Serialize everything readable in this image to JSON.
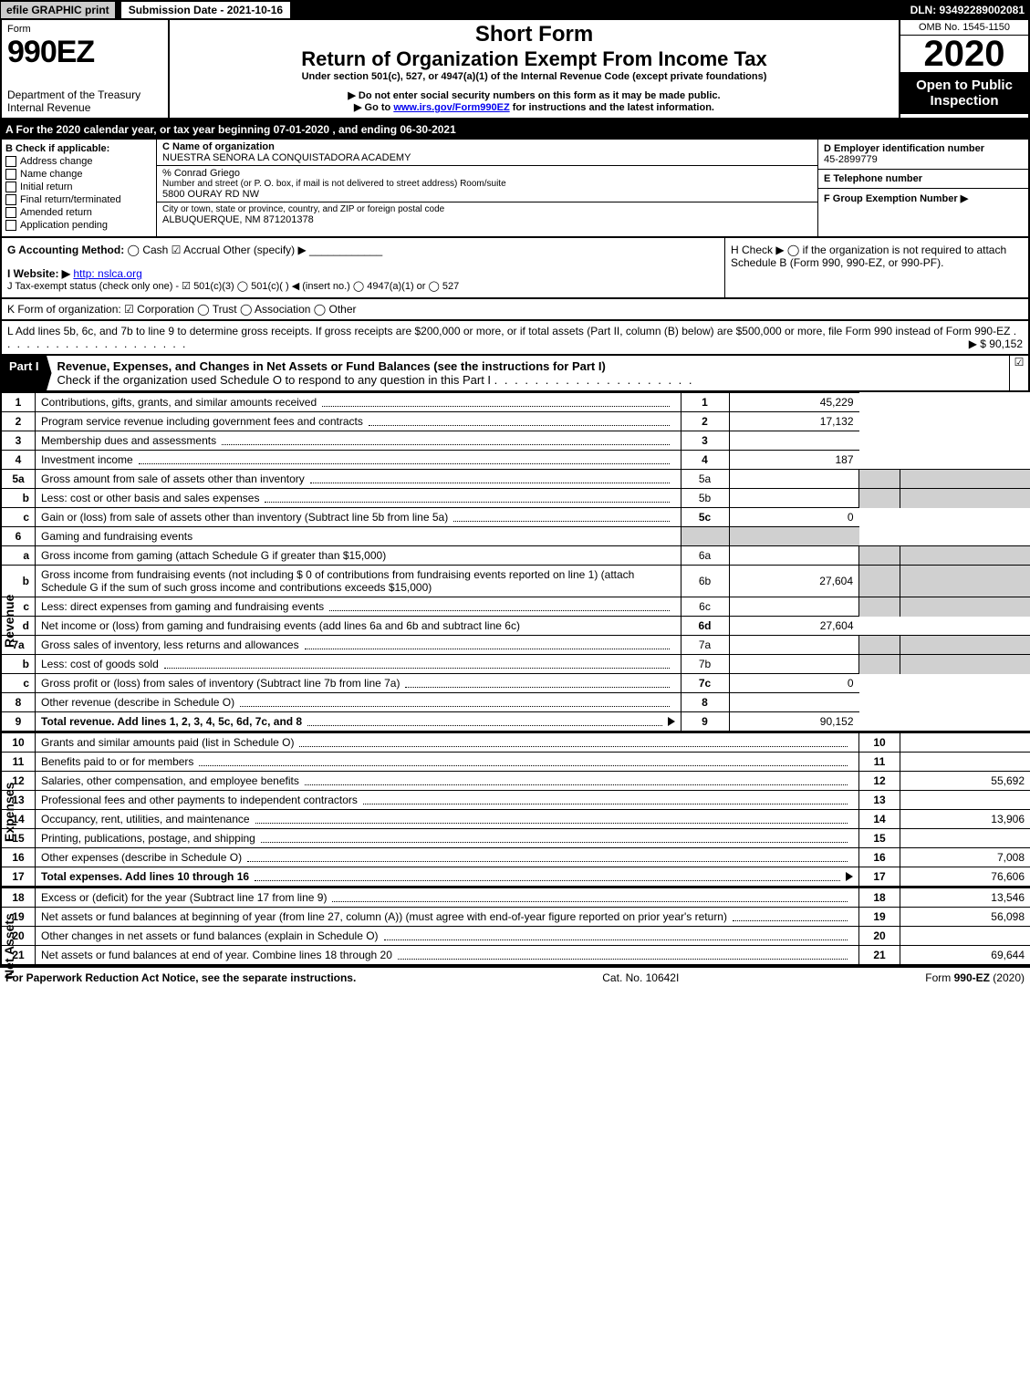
{
  "top": {
    "efile": "efile GRAPHIC print",
    "submission": "Submission Date - 2021-10-16",
    "dln": "DLN: 93492289002081"
  },
  "header": {
    "form_word": "Form",
    "form_no": "990EZ",
    "short_form": "Short Form",
    "roe": "Return of Organization Exempt From Income Tax",
    "under": "Under section 501(c), 527, or 4947(a)(1) of the Internal Revenue Code (except private foundations)",
    "no_ssn": "▶ Do not enter social security numbers on this form as it may be made public.",
    "goto_pre": "▶ Go to ",
    "goto_link": "www.irs.gov/Form990EZ",
    "goto_post": " for instructions and the latest information.",
    "dept": "Department of the Treasury",
    "irs": "Internal Revenue",
    "omb": "OMB No. 1545-1150",
    "year": "2020",
    "open": "Open to Public Inspection"
  },
  "a": "A For the 2020 calendar year, or tax year beginning 07-01-2020 , and ending 06-30-2021",
  "b": {
    "title": "B  Check if applicable:",
    "items": [
      "Address change",
      "Name change",
      "Initial return",
      "Final return/terminated",
      "Amended return",
      "Application pending"
    ]
  },
  "c": {
    "name_label": "C Name of organization",
    "name": "NUESTRA SENORA LA CONQUISTADORA ACADEMY",
    "care": "% Conrad Griego",
    "addr_label": "Number and street (or P. O. box, if mail is not delivered to street address)       Room/suite",
    "addr": "5800 OURAY RD NW",
    "city_label": "City or town, state or province, country, and ZIP or foreign postal code",
    "city": "ALBUQUERQUE, NM  871201378"
  },
  "d": {
    "ein_label": "D Employer identification number",
    "ein": "45-2899779",
    "tel_label": "E Telephone number",
    "f_label": "F Group Exemption Number  ▶"
  },
  "g": {
    "label": "G Accounting Method:",
    "cash": "Cash",
    "accrual": "Accrual",
    "other": "Other (specify) ▶"
  },
  "h": {
    "text": "H  Check ▶  ◯  if the organization is not required to attach Schedule B (Form 990, 990-EZ, or 990-PF)."
  },
  "i": {
    "label": "I Website: ▶",
    "url": "http: nslca.org"
  },
  "j": "J Tax-exempt status (check only one) -  ☑ 501(c)(3)  ◯ 501(c)(   ) ◀ (insert no.)  ◯ 4947(a)(1) or  ◯ 527",
  "k": "K Form of organization:   ☑ Corporation   ◯ Trust   ◯ Association   ◯ Other",
  "l": {
    "text": "L Add lines 5b, 6c, and 7b to line 9 to determine gross receipts. If gross receipts are $200,000 or more, or if total assets (Part II, column (B) below) are $500,000 or more, file Form 990 instead of Form 990-EZ",
    "value": "▶ $ 90,152"
  },
  "part1": {
    "label": "Part I",
    "title": "Revenue, Expenses, and Changes in Net Assets or Fund Balances (see the instructions for Part I)",
    "sub": "Check if the organization used Schedule O to respond to any question in this Part I"
  },
  "rev": [
    {
      "n": "1",
      "desc": "Contributions, gifts, grants, and similar amounts received",
      "ln": "1",
      "val": "45,229"
    },
    {
      "n": "2",
      "desc": "Program service revenue including government fees and contracts",
      "ln": "2",
      "val": "17,132"
    },
    {
      "n": "3",
      "desc": "Membership dues and assessments",
      "ln": "3",
      "val": ""
    },
    {
      "n": "4",
      "desc": "Investment income",
      "ln": "4",
      "val": "187"
    }
  ],
  "l5a": {
    "n": "5a",
    "desc": "Gross amount from sale of assets other than inventory",
    "mid": "5a"
  },
  "l5b": {
    "n": "b",
    "desc": "Less: cost or other basis and sales expenses",
    "mid": "5b"
  },
  "l5c": {
    "n": "c",
    "desc": "Gain or (loss) from sale of assets other than inventory (Subtract line 5b from line 5a)",
    "ln": "5c",
    "val": "0"
  },
  "l6": {
    "n": "6",
    "desc": "Gaming and fundraising events"
  },
  "l6a": {
    "n": "a",
    "desc": "Gross income from gaming (attach Schedule G if greater than $15,000)",
    "mid": "6a"
  },
  "l6b": {
    "n": "b",
    "desc": "Gross income from fundraising events (not including $  0                of contributions from fundraising events reported on line 1) (attach Schedule G if the sum of such gross income and contributions exceeds $15,000)",
    "mid": "6b",
    "midval": "27,604"
  },
  "l6c": {
    "n": "c",
    "desc": "Less: direct expenses from gaming and fundraising events",
    "mid": "6c"
  },
  "l6d": {
    "n": "d",
    "desc": "Net income or (loss) from gaming and fundraising events (add lines 6a and 6b and subtract line 6c)",
    "ln": "6d",
    "val": "27,604"
  },
  "l7a": {
    "n": "7a",
    "desc": "Gross sales of inventory, less returns and allowances",
    "mid": "7a"
  },
  "l7b": {
    "n": "b",
    "desc": "Less: cost of goods sold",
    "mid": "7b"
  },
  "l7c": {
    "n": "c",
    "desc": "Gross profit or (loss) from sales of inventory (Subtract line 7b from line 7a)",
    "ln": "7c",
    "val": "0"
  },
  "l8": {
    "n": "8",
    "desc": "Other revenue (describe in Schedule O)",
    "ln": "8",
    "val": ""
  },
  "l9": {
    "n": "9",
    "desc": "Total revenue. Add lines 1, 2, 3, 4, 5c, 6d, 7c, and 8",
    "ln": "9",
    "val": "90,152",
    "bold": true,
    "arrow": true
  },
  "exp": [
    {
      "n": "10",
      "desc": "Grants and similar amounts paid (list in Schedule O)",
      "ln": "10",
      "val": ""
    },
    {
      "n": "11",
      "desc": "Benefits paid to or for members",
      "ln": "11",
      "val": ""
    },
    {
      "n": "12",
      "desc": "Salaries, other compensation, and employee benefits",
      "ln": "12",
      "val": "55,692"
    },
    {
      "n": "13",
      "desc": "Professional fees and other payments to independent contractors",
      "ln": "13",
      "val": ""
    },
    {
      "n": "14",
      "desc": "Occupancy, rent, utilities, and maintenance",
      "ln": "14",
      "val": "13,906"
    },
    {
      "n": "15",
      "desc": "Printing, publications, postage, and shipping",
      "ln": "15",
      "val": ""
    },
    {
      "n": "16",
      "desc": "Other expenses (describe in Schedule O)",
      "ln": "16",
      "val": "7,008"
    },
    {
      "n": "17",
      "desc": "Total expenses. Add lines 10 through 16",
      "ln": "17",
      "val": "76,606",
      "bold": true,
      "arrow": true
    }
  ],
  "na": [
    {
      "n": "18",
      "desc": "Excess or (deficit) for the year (Subtract line 17 from line 9)",
      "ln": "18",
      "val": "13,546"
    },
    {
      "n": "19",
      "desc": "Net assets or fund balances at beginning of year (from line 27, column (A)) (must agree with end-of-year figure reported on prior year's return)",
      "ln": "19",
      "val": "56,098"
    },
    {
      "n": "20",
      "desc": "Other changes in net assets or fund balances (explain in Schedule O)",
      "ln": "20",
      "val": ""
    },
    {
      "n": "21",
      "desc": "Net assets or fund balances at end of year. Combine lines 18 through 20",
      "ln": "21",
      "val": "69,644"
    }
  ],
  "footer": {
    "left": "For Paperwork Reduction Act Notice, see the separate instructions.",
    "mid": "Cat. No. 10642I",
    "right_pre": "Form ",
    "right_form": "990-EZ",
    "right_post": " (2020)"
  },
  "colors": {
    "black": "#000000",
    "white": "#ffffff",
    "shade": "#d0d0d0",
    "link": "#0000ee"
  }
}
